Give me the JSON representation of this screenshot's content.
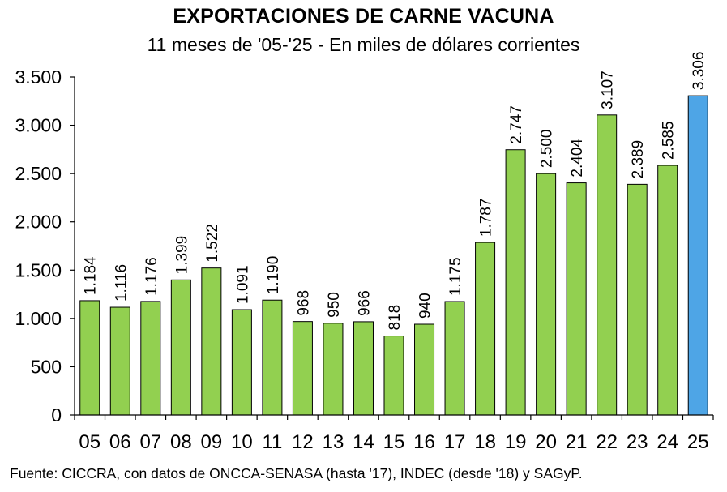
{
  "title": "EXPORTACIONES DE CARNE VACUNA",
  "subtitle": "11 meses de '05-'25 - En miles de dólares corrientes",
  "source": "Fuente: CICCRA, con datos de ONCCA-SENASA (hasta '17), INDEC (desde '18) y SAGyP.",
  "colors": {
    "bar": "#92d050",
    "highlight": "#4ea5e6",
    "stroke": "#000000"
  },
  "chart_data": {
    "type": "bar",
    "title": "EXPORTACIONES DE CARNE VACUNA",
    "subtitle": "11 meses de '05-'25 - En miles de dólares corrientes",
    "xlabel": "",
    "ylabel": "",
    "ylim": [
      0,
      3500
    ],
    "yticks": [
      0,
      500,
      1000,
      1500,
      2000,
      2500,
      3000,
      3500
    ],
    "ytick_labels": [
      "0",
      "500",
      "1.000",
      "1.500",
      "2.000",
      "2.500",
      "3.000",
      "3.500"
    ],
    "grid": false,
    "legend": "none",
    "categories": [
      "05",
      "06",
      "07",
      "08",
      "09",
      "10",
      "11",
      "12",
      "13",
      "14",
      "15",
      "16",
      "17",
      "18",
      "19",
      "20",
      "21",
      "22",
      "23",
      "24",
      "25"
    ],
    "values": [
      1184,
      1116,
      1176,
      1399,
      1522,
      1091,
      1190,
      968,
      950,
      966,
      818,
      940,
      1175,
      1787,
      2747,
      2500,
      2404,
      3107,
      2389,
      2585,
      3306
    ],
    "value_labels": [
      "1.184",
      "1.116",
      "1.176",
      "1.399",
      "1.522",
      "1.091",
      "1.190",
      "968",
      "950",
      "966",
      "818",
      "940",
      "1.175",
      "1.787",
      "2.747",
      "2.500",
      "2.404",
      "3.107",
      "2.389",
      "2.585",
      "3.306"
    ],
    "highlight_category": "25"
  }
}
